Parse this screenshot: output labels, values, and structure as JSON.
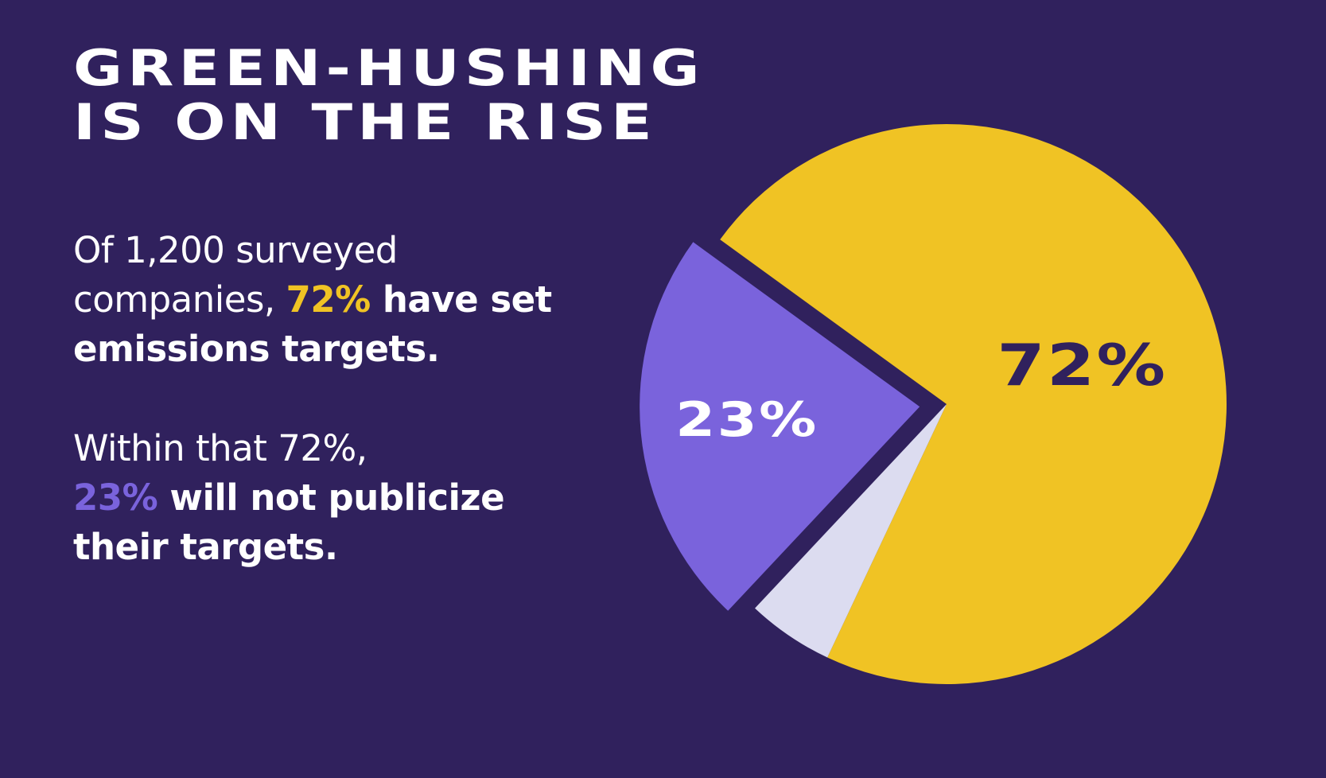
{
  "title": {
    "line1": "GREEN-HUSHING",
    "line2": "IS ON THE RISE"
  },
  "paragraph1": {
    "text_a": "Of 1,200 surveyed companies, ",
    "highlight": "72%",
    "text_b": " have set emissions targets."
  },
  "paragraph2": {
    "text_a": "Within that 72%,",
    "highlight": "23%",
    "text_b": " will not publicize their targets."
  },
  "colors": {
    "background": "#30215d",
    "yellow": "#f0c324",
    "purple": "#7a63dc",
    "light": "#dcdcf0",
    "dark_text": "#30215d"
  },
  "chart_data": {
    "type": "pie",
    "slices": [
      {
        "label": "72%",
        "value": 72,
        "color": "#f0c324",
        "exploded": false
      },
      {
        "label": "",
        "value": 5,
        "color": "#dcdcf0",
        "exploded": false
      },
      {
        "label": "23%",
        "value": 23,
        "color": "#7a63dc",
        "exploded": true
      }
    ]
  }
}
